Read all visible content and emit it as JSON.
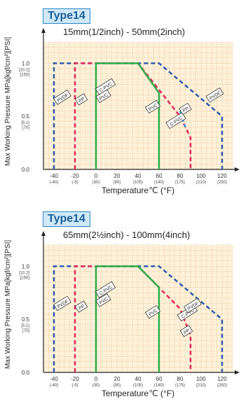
{
  "charts_meta": [
    {
      "badge": "Type14",
      "title": "15mm(1/2inch) - 50mm(2inch)"
    },
    {
      "badge": "Type14",
      "title": "65mm(2½inch) - 100mm(4inch)"
    }
  ],
  "chart_data": [
    {
      "type": "line",
      "title": "15mm(1/2inch) - 50mm(2inch)",
      "xlabel": "Temperature℃ (°F)",
      "ylabel": "Max Working Pressure MPa[kgf/cm²][PSI]",
      "x_ticks": [
        {
          "value": -40,
          "label": "-40",
          "sub": "(-40)"
        },
        {
          "value": -20,
          "label": "-20",
          "sub": "(-5)"
        },
        {
          "value": 0,
          "label": "0",
          "sub": "(30)"
        },
        {
          "value": 20,
          "label": "20",
          "sub": "(90)"
        },
        {
          "value": 40,
          "label": "40",
          "sub": "(105)"
        },
        {
          "value": 60,
          "label": "60",
          "sub": "(140)"
        },
        {
          "value": 80,
          "label": "80",
          "sub": "(175)"
        },
        {
          "value": 100,
          "label": "100",
          "sub": "(210)"
        },
        {
          "value": 120,
          "label": "120",
          "sub": "(250)"
        }
      ],
      "y_ticks": [
        {
          "value": 1.0,
          "label": "1.0",
          "sub1": "[10.2]",
          "sub2": "[150]"
        },
        {
          "value": 0.5,
          "label": "0.5",
          "sub1": "[5.1]",
          "sub2": "[70]"
        },
        {
          "value": 0.0,
          "label": "0.0",
          "sub1": "",
          "sub2": ""
        }
      ],
      "xlim": [
        -50,
        130
      ],
      "ylim": [
        0,
        1.2
      ],
      "grid": true,
      "series": [
        {
          "color": "#2a5caa",
          "dash": true,
          "points": [
            [
              -40,
              0
            ],
            [
              -40,
              1.0
            ],
            [
              60,
              1.0
            ],
            [
              120,
              0.5
            ],
            [
              120,
              0
            ]
          ]
        },
        {
          "color": "#e2265a",
          "dash": true,
          "points": [
            [
              -20,
              0
            ],
            [
              -20,
              1.0
            ],
            [
              40,
              1.0
            ],
            [
              80,
              0.5
            ],
            [
              90,
              0.3
            ],
            [
              90,
              0
            ]
          ]
        },
        {
          "color": "#29a3dc",
          "dash": true,
          "points": [
            [
              80,
              0.55
            ],
            [
              85,
              0.4
            ]
          ]
        },
        {
          "color": "#2bab4a",
          "dash": false,
          "points": [
            [
              0,
              0
            ],
            [
              0,
              1.0
            ],
            [
              40,
              1.0
            ],
            [
              60,
              0.72
            ],
            [
              60,
              0
            ]
          ]
        }
      ],
      "series_tags": [
        {
          "text": "PVDF",
          "x": -32,
          "y": 0.68
        },
        {
          "text": "PP",
          "x": -14,
          "y": 0.66
        },
        {
          "text": "C-PVC",
          "x": 9,
          "y": 0.78
        },
        {
          "text": "PVC",
          "x": 7,
          "y": 0.69
        },
        {
          "text": "PVC",
          "x": 54,
          "y": 0.59
        },
        {
          "text": "C-PVC",
          "x": 76,
          "y": 0.46
        },
        {
          "text": "PP",
          "x": 85,
          "y": 0.57
        },
        {
          "text": "PVDF",
          "x": 113,
          "y": 0.7
        }
      ]
    },
    {
      "type": "line",
      "title": "65mm(2½inch) - 100mm(4inch)",
      "xlabel": "Temperature℃ (°F)",
      "ylabel": "Max Working Pressure MPa[kgf/cm²][PSI]",
      "x_ticks": [
        {
          "value": -40,
          "label": "-40",
          "sub": "(-40)"
        },
        {
          "value": -20,
          "label": "-20",
          "sub": "(-5)"
        },
        {
          "value": 0,
          "label": "0",
          "sub": "(30)"
        },
        {
          "value": 20,
          "label": "20",
          "sub": "(90)"
        },
        {
          "value": 40,
          "label": "40",
          "sub": "(105)"
        },
        {
          "value": 60,
          "label": "60",
          "sub": "(140)"
        },
        {
          "value": 80,
          "label": "80",
          "sub": "(175)"
        },
        {
          "value": 100,
          "label": "100",
          "sub": "(210)"
        },
        {
          "value": 120,
          "label": "120",
          "sub": "(250)"
        }
      ],
      "y_ticks": [
        {
          "value": 1.0,
          "label": "1.0",
          "sub1": "[10.2]",
          "sub2": "[150]"
        },
        {
          "value": 0.5,
          "label": "0.5",
          "sub1": "[5.1]",
          "sub2": "[70]"
        },
        {
          "value": 0.0,
          "label": "0.0",
          "sub1": "",
          "sub2": ""
        }
      ],
      "xlim": [
        -50,
        130
      ],
      "ylim": [
        0,
        1.2
      ],
      "grid": true,
      "series": [
        {
          "color": "#2a5caa",
          "dash": true,
          "points": [
            [
              -40,
              0
            ],
            [
              -40,
              1.0
            ],
            [
              60,
              1.0
            ],
            [
              120,
              0.5
            ],
            [
              120,
              0
            ]
          ]
        },
        {
          "color": "#e2265a",
          "dash": true,
          "points": [
            [
              -20,
              0
            ],
            [
              -20,
              1.0
            ],
            [
              40,
              1.0
            ],
            [
              80,
              0.6
            ],
            [
              90,
              0.35
            ],
            [
              90,
              0
            ]
          ]
        },
        {
          "color": "#2bab4a",
          "dash": false,
          "points": [
            [
              0,
              0
            ],
            [
              0,
              1.0
            ],
            [
              40,
              1.0
            ],
            [
              60,
              0.8
            ],
            [
              60,
              0
            ]
          ]
        }
      ],
      "series_tags": [
        {
          "text": "PVDF",
          "x": -32,
          "y": 0.65
        },
        {
          "text": "PP",
          "x": -14,
          "y": 0.62
        },
        {
          "text": "C-PVC",
          "x": 9,
          "y": 0.78
        },
        {
          "text": "PVC",
          "x": 7,
          "y": 0.68
        },
        {
          "text": "PVC",
          "x": 54,
          "y": 0.57
        },
        {
          "text": "C-PVC",
          "x": 87,
          "y": 0.56
        },
        {
          "text": "PP",
          "x": 86,
          "y": 0.39
        },
        {
          "text": "PVDF",
          "x": 92,
          "y": 0.63
        }
      ]
    }
  ]
}
